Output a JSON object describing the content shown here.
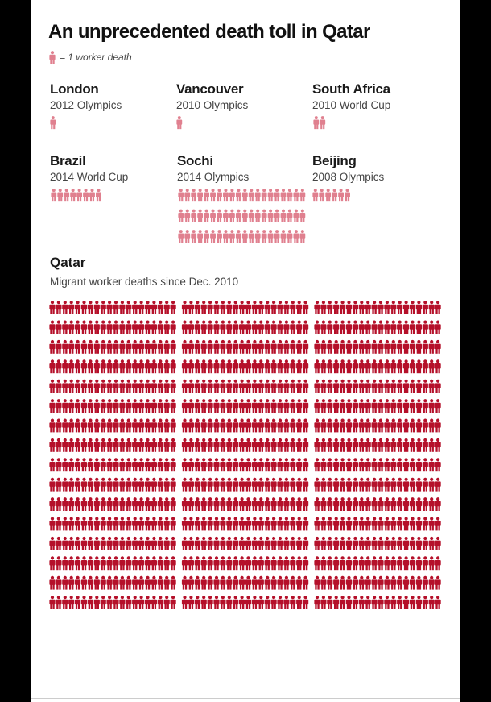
{
  "title": "An unprecedented death toll in Qatar",
  "legend": {
    "text": "= 1 worker death",
    "icon": "person-icon"
  },
  "colors": {
    "light_figure": "#e0808f",
    "dark_figure": "#b5102a",
    "title": "#111111",
    "background": "#ffffff"
  },
  "chart_data": {
    "type": "pictogram",
    "title": "An unprecedented death toll in Qatar",
    "unit": "1 worker death",
    "comparisons": [
      {
        "name": "London",
        "event": "2012 Olympics",
        "deaths": 1
      },
      {
        "name": "Vancouver",
        "event": "2010 Olympics",
        "deaths": 1
      },
      {
        "name": "South Africa",
        "event": "2010 World Cup",
        "deaths": 2
      },
      {
        "name": "Brazil",
        "event": "2014 World Cup",
        "deaths": 8
      },
      {
        "name": "Sochi",
        "event": "2014 Olympics",
        "deaths": 60
      },
      {
        "name": "Beijing",
        "event": "2008 Olympics",
        "deaths": 6
      }
    ],
    "qatar": {
      "name": "Qatar",
      "subtitle": "Migrant worker deaths since Dec. 2010",
      "deaths": 960
    }
  }
}
